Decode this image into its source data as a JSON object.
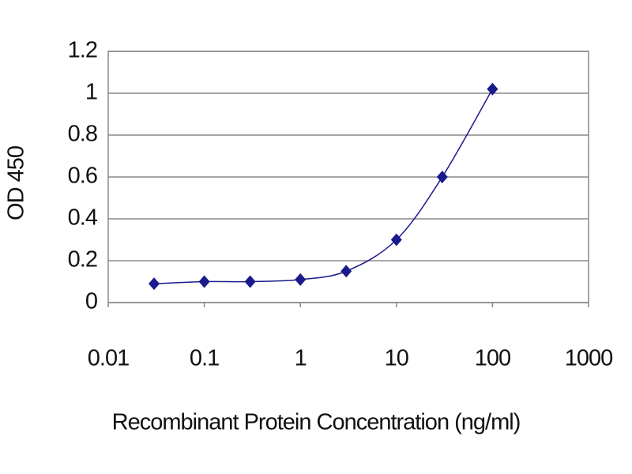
{
  "chart_data": {
    "type": "line",
    "x_label": "Recombinant Protein Concentration (ng/ml)",
    "y_label": "OD 450",
    "x": [
      0.03,
      0.1,
      0.3,
      1,
      3,
      10,
      30,
      100
    ],
    "series": [
      {
        "color": "#1a1a8c",
        "values": [
          0.09,
          0.1,
          0.1,
          0.11,
          0.15,
          0.3,
          0.6,
          1.02
        ]
      }
    ],
    "xlim": [
      0.01,
      1000
    ],
    "xticks": [
      0.01,
      0.1,
      1,
      10,
      100,
      1000
    ],
    "x_log": true,
    "ylim": [
      0,
      1.2
    ],
    "yticks": [
      0,
      0.2,
      0.4,
      0.6,
      0.8,
      1,
      1.2
    ],
    "grid": true
  }
}
